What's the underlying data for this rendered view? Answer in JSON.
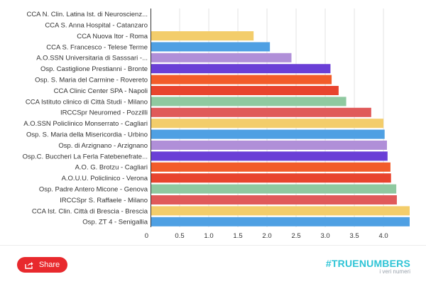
{
  "chart_data": {
    "type": "bar",
    "orientation": "horizontal",
    "title": "",
    "xlabel": "",
    "ylabel": "",
    "xlim": [
      0,
      4.45
    ],
    "xticks": [
      "0",
      "0.5",
      "1.0",
      "1.5",
      "2.0",
      "2.5",
      "3.0",
      "3.5",
      "4.0"
    ],
    "grid": true,
    "categories": [
      "CCA N. Clin. Latina Ist. di Neuroscienz...",
      "CCA S. Anna Hospital - Catanzaro",
      "CCA Nuova Itor - Roma",
      "CCA S. Francesco - Telese Terme",
      "A.O.SSN Universitaria di Sasssari -...",
      "Osp. Castiglione Prestianni - Bronte",
      "Osp. S. Maria del Carmine - Rovereto",
      "CCA Clinic Center SPA - Napoli",
      "CCA Istituto clinico di Città Studi - Milano",
      "IRCCSpr Neuromed - Pozzilli",
      "A.O.SSN Policlinico Monserrato - Cagliari",
      "Osp. S. Maria della Misericordia - Urbino",
      "Osp. di Arzignano - Arzignano",
      "Osp.C. Buccheri La Ferla Fatebenefrate...",
      "A.O. G. Brotzu - Cagliari",
      "A.O.U.U. Policlinico - Verona",
      "Osp. Padre Antero Micone - Genova",
      "IRCCSpr S. Raffaele - Milano",
      "CCA Ist. Clin. Città di Brescia - Brescia",
      "Osp. ZT 4 - Senigallia"
    ],
    "values": [
      0,
      0,
      1.77,
      2.05,
      2.42,
      3.09,
      3.11,
      3.23,
      3.36,
      3.79,
      4.0,
      4.02,
      4.06,
      4.07,
      4.12,
      4.13,
      4.22,
      4.23,
      4.45,
      4.45
    ],
    "colors": [
      "#e9c46a",
      "#4fa0e3",
      "#f3cd6b",
      "#4fa0e3",
      "#b08fd8",
      "#6a3fd6",
      "#f25c2a",
      "#e8442e",
      "#8fc9a0",
      "#e05a5a",
      "#f3cd6b",
      "#4fa0e3",
      "#b08fd8",
      "#6a3fd6",
      "#f25c2a",
      "#e8442e",
      "#8fc9a0",
      "#e05a5a",
      "#f3cd6b",
      "#4fa0e3"
    ]
  },
  "footer": {
    "share_label": "Share",
    "share_color": "#e8292d",
    "brand_main": "#TRUENUMBERS",
    "brand_sub": "i veri numeri",
    "brand_color": "#2ec4d6"
  },
  "icons": {
    "share": "share-icon"
  }
}
